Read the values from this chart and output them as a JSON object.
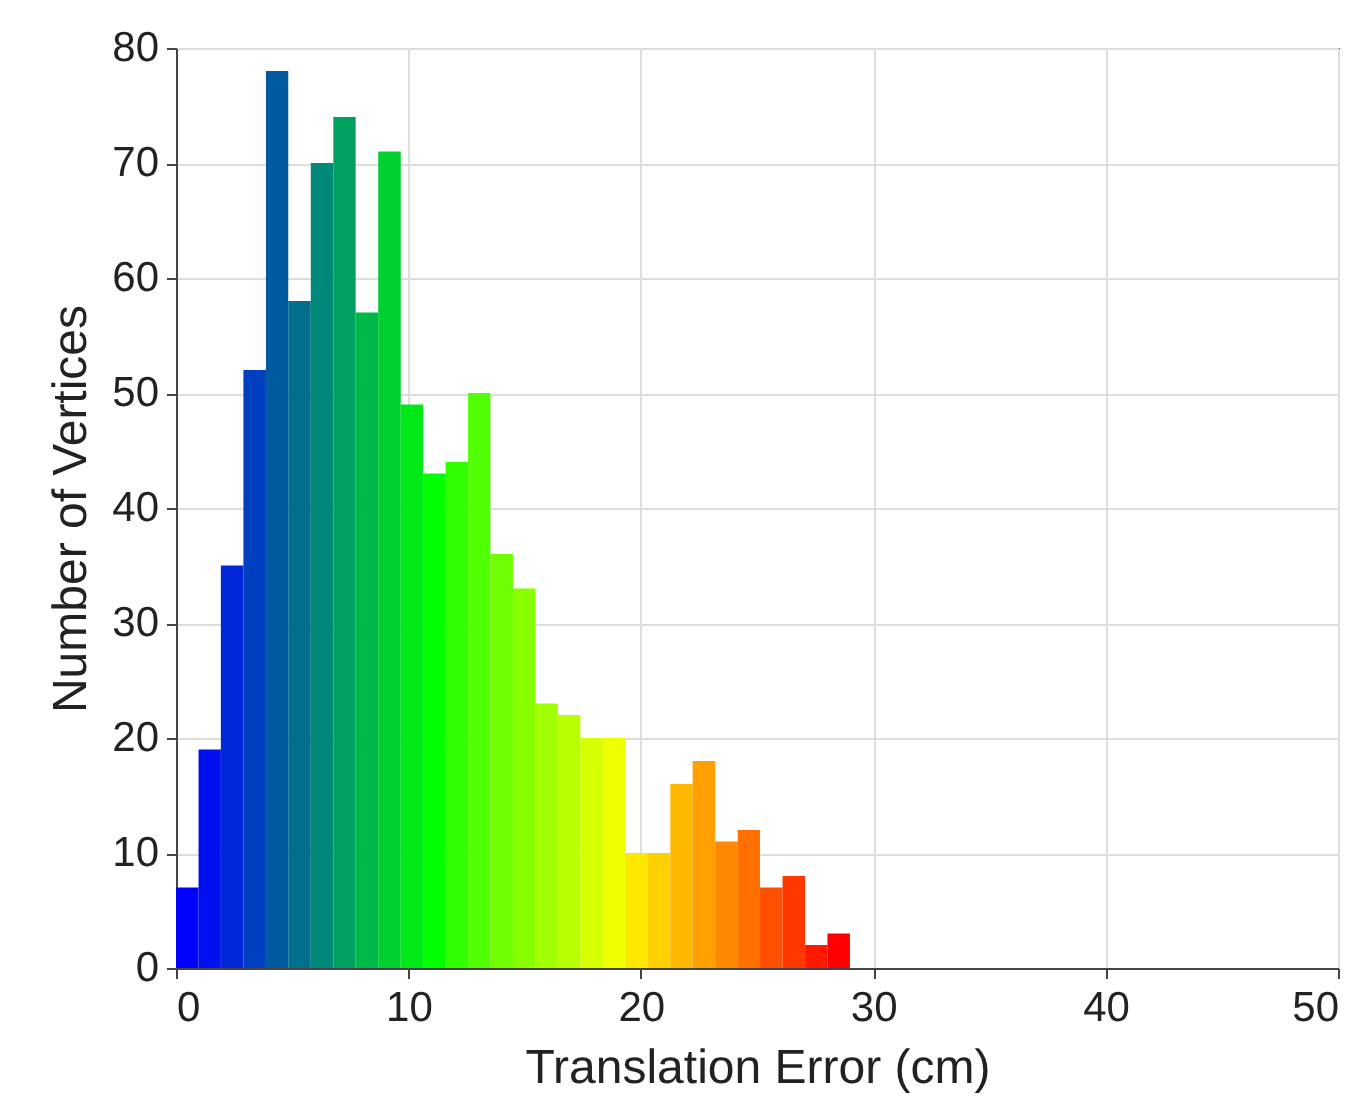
{
  "chart_data": {
    "type": "histogram",
    "xlabel": "Translation Error (cm)",
    "ylabel": "Number of Vertices",
    "bins": [
      0,
      0.97,
      1.93,
      2.9,
      3.87,
      4.83,
      5.8,
      6.77,
      7.73,
      8.7,
      9.67,
      10.63,
      11.6,
      12.57,
      13.53,
      14.5,
      15.47,
      16.43,
      17.4,
      18.37,
      19.33,
      20.3,
      21.27,
      22.23,
      23.2,
      24.17,
      25.13,
      26.1,
      27.07,
      28.03,
      29
    ],
    "values": [
      7,
      19,
      35,
      52,
      78,
      58,
      70,
      74,
      57,
      71,
      49,
      43,
      44,
      50,
      36,
      33,
      23,
      22,
      20,
      20,
      10,
      10,
      16,
      18,
      11,
      12,
      7,
      8,
      2,
      3
    ],
    "colors": [
      "#0000ff",
      "#0010ee",
      "#0028d8",
      "#0040c0",
      "#005aa0",
      "#00708c",
      "#008878",
      "#00a060",
      "#00b848",
      "#00d030",
      "#00e818",
      "#00ff00",
      "#30ff00",
      "#50ff00",
      "#70ff00",
      "#88ff00",
      "#a0ff00",
      "#b8ff00",
      "#d8ff00",
      "#f0ff00",
      "#ffe800",
      "#ffd000",
      "#ffb800",
      "#ffa000",
      "#ff8800",
      "#ff7000",
      "#ff5000",
      "#ff3800",
      "#ff1800",
      "#ff0000"
    ],
    "xlim": [
      0,
      50
    ],
    "ylim": [
      0,
      80
    ],
    "xticks": [
      0,
      10,
      20,
      30,
      40,
      50
    ],
    "yticks": [
      0,
      10,
      20,
      30,
      40,
      50,
      60,
      70,
      80
    ],
    "grid": true
  }
}
